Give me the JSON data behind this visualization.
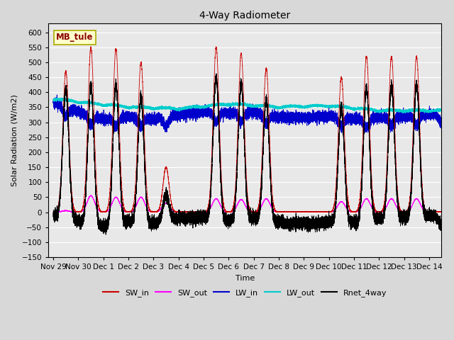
{
  "title": "4-Way Radiometer",
  "xlabel": "Time",
  "ylabel": "Solar Radiation (W/m2)",
  "ylim": [
    -150,
    630
  ],
  "yticks": [
    -150,
    -100,
    -50,
    0,
    50,
    100,
    150,
    200,
    250,
    300,
    350,
    400,
    450,
    500,
    550,
    600
  ],
  "xtick_labels": [
    "Nov 29",
    "Nov 30",
    "Dec 1",
    "Dec 2",
    "Dec 3",
    "Dec 4",
    "Dec 5",
    "Dec 6",
    "Dec 7",
    "Dec 8",
    "Dec 9",
    "Dec 10",
    "Dec 11",
    "Dec 12",
    "Dec 13",
    "Dec 14"
  ],
  "xtick_positions": [
    0,
    1,
    2,
    3,
    4,
    5,
    6,
    7,
    8,
    9,
    10,
    11,
    12,
    13,
    14,
    15
  ],
  "station_label": "MB_tule",
  "colors": {
    "SW_in": "#cc0000",
    "SW_out": "#ff00ff",
    "LW_in": "#0000cc",
    "LW_out": "#00cccc",
    "Rnet_4way": "#000000"
  },
  "fig_width": 6.4,
  "fig_height": 4.8,
  "dpi": 100
}
